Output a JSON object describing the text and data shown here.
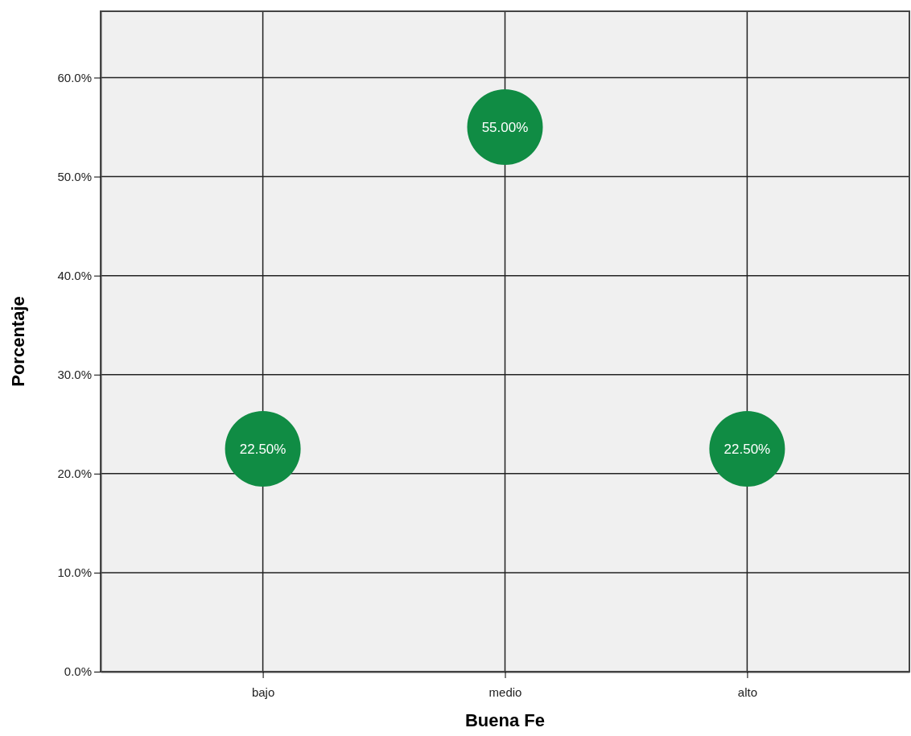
{
  "chart_data": {
    "type": "scatter",
    "xlabel": "Buena Fe",
    "ylabel": "Porcentaje",
    "categories": [
      "bajo",
      "medio",
      "alto"
    ],
    "series": [
      {
        "color": "#108c44",
        "values": [
          22.5,
          55,
          22.5
        ],
        "value_labels": [
          "22.50%",
          "55.00%",
          "22.50%"
        ]
      }
    ],
    "ylim": [
      0,
      66.7
    ],
    "yticks": [
      {
        "value": 0,
        "label": "0.0%"
      },
      {
        "value": 10,
        "label": "10.0%"
      },
      {
        "value": 20,
        "label": "20.0%"
      },
      {
        "value": 30,
        "label": "30.0%"
      },
      {
        "value": 40,
        "label": "40.0%"
      },
      {
        "value": 50,
        "label": "50.0%"
      },
      {
        "value": 60,
        "label": "60.0%"
      }
    ],
    "grid": true,
    "marker": "circle"
  }
}
